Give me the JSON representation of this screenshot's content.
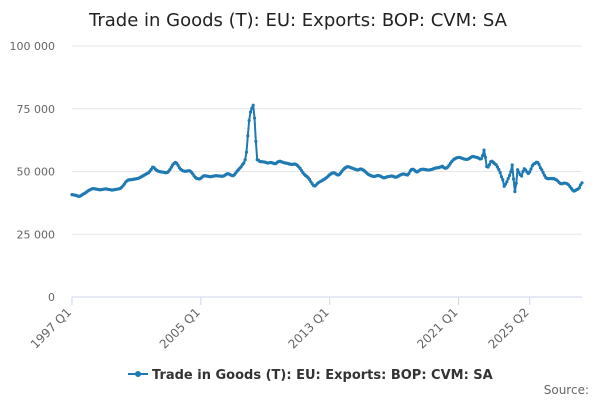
{
  "colors": {
    "series": "#1f7ab3",
    "grid": "#e6e6e6",
    "axis": "#ccd6eb"
  },
  "chart_data": {
    "type": "line",
    "title": "Trade in Goods (T): EU: Exports: BOP: CVM: SA",
    "source_label": "Source:",
    "legend_position": "bottom-center",
    "grid": true,
    "ylim": [
      0,
      100000
    ],
    "y_ticks": [
      0,
      25000,
      50000,
      75000,
      100000
    ],
    "y_tick_labels": [
      "0",
      "25 000",
      "50 000",
      "75 000",
      "100 000"
    ],
    "x_tick_labels": [
      "1997 Q1",
      "2005 Q1",
      "2013 Q1",
      "2021 Q1",
      "2025 Q2"
    ],
    "x_tick_index": [
      0,
      96,
      192,
      288,
      341
    ],
    "x_label_rotation": -45,
    "series": [
      {
        "name": "Trade in Goods (T): EU: Exports: BOP: CVM: SA",
        "start": "1997 Jan",
        "frequency": "monthly",
        "values": [
          40800,
          40700,
          40600,
          40500,
          40300,
          40100,
          40200,
          40500,
          40900,
          41200,
          41500,
          41900,
          42300,
          42600,
          42900,
          43100,
          43200,
          43100,
          43000,
          42900,
          42800,
          42700,
          42800,
          42900,
          43000,
          43100,
          43000,
          42900,
          42800,
          42700,
          42600,
          42700,
          42800,
          42900,
          43000,
          43100,
          43300,
          43700,
          44300,
          45000,
          45800,
          46300,
          46600,
          46700,
          46700,
          46800,
          46900,
          47000,
          47100,
          47200,
          47400,
          47700,
          48000,
          48300,
          48600,
          48900,
          49200,
          49500,
          50100,
          50800,
          51700,
          51600,
          51000,
          50500,
          50200,
          50000,
          49900,
          49800,
          49700,
          49600,
          49500,
          49600,
          50100,
          50800,
          51700,
          52600,
          53200,
          53600,
          53300,
          52500,
          51500,
          50900,
          50500,
          50200,
          50100,
          50100,
          50200,
          50300,
          50200,
          49700,
          49000,
          48200,
          47600,
          47200,
          47100,
          47000,
          47300,
          47800,
          48200,
          48300,
          48200,
          48100,
          48000,
          47900,
          48000,
          48100,
          48200,
          48300,
          48300,
          48200,
          48200,
          48100,
          48100,
          48200,
          48500,
          48900,
          49100,
          49000,
          48700,
          48400,
          48300,
          48700,
          49400,
          50100,
          50700,
          51300,
          51900,
          52700,
          53400,
          54700,
          57700,
          64200,
          70300,
          73700,
          75200,
          76400,
          71300,
          62000,
          54700,
          54500,
          54000,
          53900,
          53900,
          53800,
          53700,
          53500,
          53400,
          53500,
          53600,
          53500,
          53300,
          53100,
          53200,
          53700,
          54000,
          54100,
          53900,
          53700,
          53500,
          53400,
          53300,
          53200,
          53000,
          52900,
          52800,
          52900,
          53000,
          52800,
          52400,
          51800,
          51200,
          50400,
          49600,
          48900,
          48400,
          48000,
          47500,
          46800,
          45900,
          45100,
          44400,
          44200,
          44700,
          45300,
          45700,
          46000,
          46300,
          46600,
          46900,
          47300,
          47700,
          48200,
          48700,
          49100,
          49400,
          49500,
          49300,
          48900,
          48600,
          48700,
          49300,
          50000,
          50700,
          51200,
          51600,
          51900,
          51900,
          51700,
          51500,
          51300,
          51100,
          50900,
          50700,
          50600,
          50800,
          51000,
          50900,
          50600,
          50200,
          49700,
          49200,
          48800,
          48500,
          48300,
          48100,
          48000,
          48100,
          48300,
          48400,
          48300,
          48100,
          47800,
          47500,
          47500,
          47700,
          47900,
          48000,
          48100,
          48200,
          48100,
          47900,
          47700,
          47800,
          48100,
          48400,
          48700,
          48900,
          49000,
          48900,
          48700,
          48600,
          49200,
          50200,
          50800,
          50900,
          50600,
          50100,
          49800,
          50100,
          50500,
          50800,
          50900,
          50900,
          50800,
          50700,
          50600,
          50600,
          50700,
          50800,
          51000,
          51200,
          51400,
          51500,
          51500,
          51700,
          51900,
          52100,
          51600,
          51300,
          51400,
          51800,
          52500,
          53300,
          54000,
          54600,
          55000,
          55300,
          55500,
          55600,
          55600,
          55400,
          55200,
          55000,
          54900,
          54800,
          54900,
          55200,
          55600,
          55900,
          56000,
          55800,
          55700,
          55600,
          55300,
          55000,
          55100,
          56400,
          58500,
          55700,
          52000,
          51800,
          52700,
          53900,
          54100,
          53600,
          53100,
          52700,
          51800,
          50800,
          49600,
          47900,
          46700,
          44100,
          44900,
          45900,
          47200,
          48400,
          49900,
          52600,
          47000,
          42000,
          45300,
          50700,
          49700,
          48700,
          48200,
          50000,
          51100,
          50600,
          49800,
          49200,
          49800,
          51000,
          52300,
          53000,
          53200,
          53700,
          53600,
          52800,
          51500,
          50700,
          49600,
          48500,
          47600,
          47200,
          47100,
          47200,
          47200,
          47100,
          47200,
          46900,
          46600,
          46200,
          45600,
          45200,
          45100,
          45300,
          45400,
          45300,
          45100,
          44700,
          44000,
          43300,
          42600,
          42200,
          42400,
          42800,
          43000,
          43500,
          44700,
          45500
        ]
      }
    ]
  }
}
